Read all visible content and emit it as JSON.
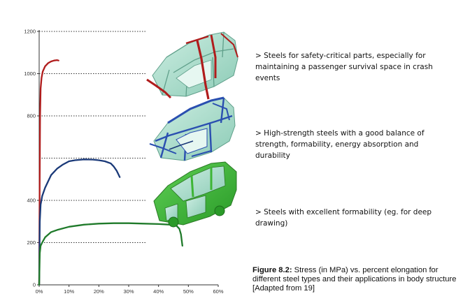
{
  "chart_data": {
    "type": "line",
    "title": "",
    "xlabel": "",
    "ylabel": "",
    "xlim": [
      0,
      60
    ],
    "ylim": [
      0,
      1200
    ],
    "x_ticks": [
      0,
      10,
      20,
      30,
      40,
      50,
      60
    ],
    "x_tick_labels": [
      "0%",
      "10%",
      "20%",
      "30%",
      "40%",
      "50%",
      "60%"
    ],
    "y_ticks": [
      0,
      200,
      400,
      800,
      1000,
      1200
    ],
    "y_tick_labels": [
      "0",
      "200",
      "400",
      "800",
      "1000",
      "1200"
    ],
    "gridlines_y": [
      200,
      400,
      600,
      800,
      1000,
      1200
    ],
    "series": [
      {
        "color": "#b01c1c",
        "x": [
          0,
          0.15,
          0.3,
          0.5,
          0.8,
          1.2,
          2,
          3,
          4,
          5,
          6,
          6.5
        ],
        "y": [
          0,
          400,
          800,
          930,
          980,
          1010,
          1035,
          1050,
          1058,
          1062,
          1064,
          1062
        ]
      },
      {
        "color": "#1a3978",
        "x": [
          0,
          0.2,
          0.5,
          1,
          2,
          4,
          6,
          8,
          10,
          12,
          15,
          18,
          20,
          22,
          24,
          25,
          26,
          26.5,
          27
        ],
        "y": [
          0,
          300,
          380,
          420,
          460,
          520,
          550,
          570,
          585,
          590,
          594,
          593,
          590,
          585,
          575,
          560,
          540,
          525,
          510
        ]
      },
      {
        "color": "#1f7a2a",
        "x": [
          0,
          0.2,
          0.5,
          1,
          2,
          4,
          6,
          10,
          15,
          20,
          25,
          30,
          35,
          40,
          44,
          46,
          47,
          47.5,
          48
        ],
        "y": [
          0,
          150,
          185,
          200,
          225,
          250,
          260,
          275,
          285,
          290,
          292,
          292,
          290,
          288,
          285,
          280,
          265,
          240,
          185
        ]
      }
    ]
  },
  "descriptions": [
    "> Steels for safety-critical parts, especially for maintaining a passenger survival space in crash events",
    "> High-strength steels with a good balance of strength, formability, energy absorption and durability",
    "> Steels with excellent formability (eg. for deep drawing)"
  ],
  "caption": {
    "label": "Figure 8.2:",
    "text": " Stress (in MPa) vs. percent elongation for different steel types and their applications in body structure [Adapted from 19]"
  },
  "colors": {
    "car_body": "#a8dccb",
    "car_edge": "#5f9f8a",
    "red_highlight": "#b01c1c",
    "blue_highlight": "#2a4fb0",
    "green_highlight": "#3db535"
  },
  "illustrations": [
    "car-body-red-parts",
    "car-body-blue-parts",
    "car-body-green-parts"
  ]
}
